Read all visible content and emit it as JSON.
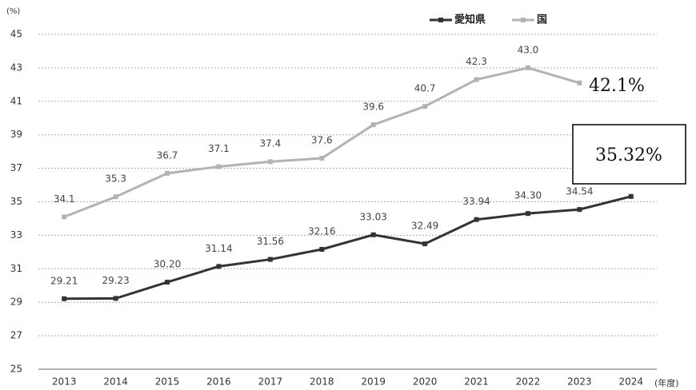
{
  "chart_data": {
    "type": "line",
    "y_unit": "(%)",
    "x_unit": "(年度)",
    "categories": [
      "2013",
      "2014",
      "2015",
      "2016",
      "2017",
      "2018",
      "2019",
      "2020",
      "2021",
      "2022",
      "2023",
      "2024"
    ],
    "series": [
      {
        "name": "愛知県",
        "color": "#333333",
        "values": [
          29.21,
          29.23,
          30.2,
          31.14,
          31.56,
          32.16,
          33.03,
          32.49,
          33.94,
          34.3,
          34.54,
          35.32
        ],
        "value_labels": [
          "29.21",
          "29.23",
          "30.20",
          "31.14",
          "31.56",
          "32.16",
          "33.03",
          "32.49",
          "33.94",
          "34.30",
          "34.54",
          "35.32%"
        ]
      },
      {
        "name": "国",
        "color": "#b3b3b3",
        "values": [
          34.1,
          35.3,
          36.7,
          37.1,
          37.4,
          37.6,
          39.6,
          40.7,
          42.3,
          43.0,
          42.1,
          null
        ],
        "value_labels": [
          "34.1",
          "35.3",
          "36.7",
          "37.1",
          "37.4",
          "37.6",
          "39.6",
          "40.7",
          "42.3",
          "43.0",
          "42.1%",
          null
        ]
      }
    ],
    "ylim": [
      25,
      45
    ],
    "yticks": [
      25,
      27,
      29,
      31,
      33,
      35,
      37,
      39,
      41,
      43,
      45
    ],
    "grid": true
  }
}
